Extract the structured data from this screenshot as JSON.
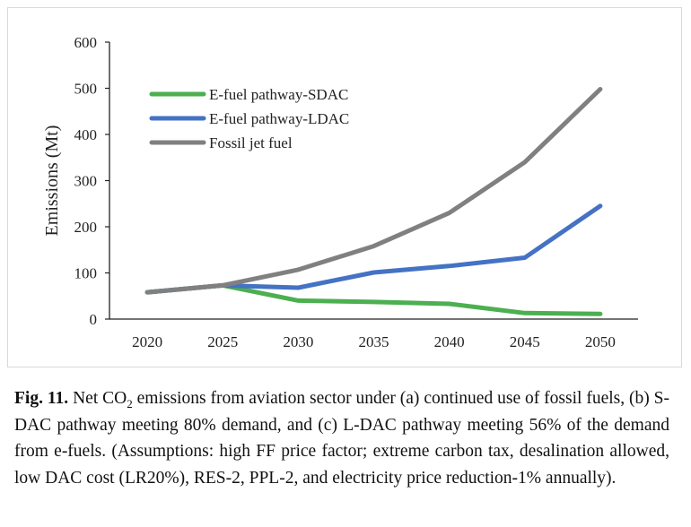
{
  "chart_data": {
    "type": "line",
    "title": "",
    "xlabel": "",
    "ylabel": "Emissions (Mt)",
    "x": [
      "2020",
      "2025",
      "2030",
      "2035",
      "2040",
      "2045",
      "2050"
    ],
    "ylim": [
      0,
      600
    ],
    "yticks": [
      "0",
      "100",
      "200",
      "300",
      "400",
      "500",
      "600"
    ],
    "grid": false,
    "legend_position": "top-left",
    "series": [
      {
        "name": "E-fuel pathway-SDAC",
        "color": "#4caf50",
        "values": [
          58,
          73,
          40,
          37,
          33,
          13,
          11
        ]
      },
      {
        "name": "E-fuel pathway-LDAC",
        "color": "#4472c4",
        "values": [
          58,
          73,
          68,
          101,
          115,
          133,
          245
        ]
      },
      {
        "name": "Fossil jet fuel",
        "color": "#808080",
        "values": [
          58,
          73,
          107,
          158,
          230,
          340,
          498
        ]
      }
    ]
  },
  "caption": {
    "label": "Fig. 11.",
    "text_before_sub": " Net CO",
    "subscript": "2",
    "text_after_sub": " emissions from aviation sector under (a) continued use of fossil fuels, (b) S-DAC pathway meeting 80% demand, and (c) L-DAC pathway meeting 56% of the demand from e-fuels. (Assumptions: high FF price factor; extreme carbon tax, desalination allowed, low DAC cost (LR20%), RES-2, PPL-2, and electricity price reduction-1% annually)."
  }
}
